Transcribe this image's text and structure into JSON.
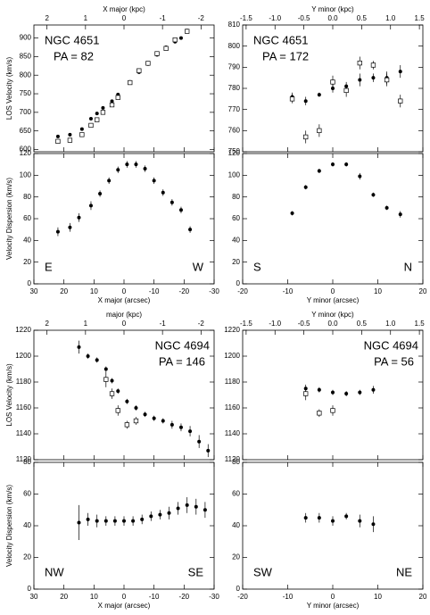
{
  "chart_data": [
    {
      "type": "scatter",
      "ylabel": "LOS Velocity (km/s)",
      "top_xlabel": "X major (kpc)",
      "annotations": [
        "NGC 4651",
        "PA = 82"
      ],
      "label_corner": "upper left",
      "xlim": [
        30,
        -30
      ],
      "xticks": [
        30,
        20,
        10,
        0,
        -10,
        -20,
        -30
      ],
      "ylim": [
        594,
        935
      ],
      "yticks": [
        600,
        650,
        700,
        750,
        800,
        850,
        900
      ],
      "top_xlim": [
        2.34,
        -2.34
      ],
      "top_xticks": [
        2,
        1,
        0,
        -1,
        -2
      ],
      "color": "#000000",
      "series": [
        {
          "marker": "filled",
          "x": [
            22,
            18,
            14,
            11,
            9,
            7,
            4,
            2,
            -2,
            -5,
            -8,
            -11,
            -14,
            -17,
            -19,
            -21
          ],
          "values": [
            635,
            640,
            655,
            683,
            697,
            712,
            730,
            748,
            782,
            808,
            830,
            855,
            875,
            890,
            900,
            920
          ],
          "errors": [
            4,
            4,
            4,
            4,
            4,
            4,
            4,
            4,
            4,
            4,
            4,
            4,
            4,
            4,
            4,
            4
          ]
        },
        {
          "marker": "open",
          "x": [
            22,
            18,
            14,
            11,
            9,
            7,
            4,
            2,
            -2,
            -5,
            -8,
            -11,
            -14,
            -17,
            -21
          ],
          "values": [
            622,
            625,
            640,
            665,
            680,
            700,
            720,
            740,
            780,
            812,
            832,
            858,
            872,
            895,
            918
          ],
          "errors": [
            4,
            4,
            4,
            4,
            4,
            4,
            4,
            4,
            4,
            4,
            4,
            4,
            4,
            4,
            4
          ]
        }
      ]
    },
    {
      "type": "scatter",
      "ylabel": "Velocity Dispersion (km/s)",
      "xlabel": "X major (arcsec)",
      "annotations": [
        "E",
        "W"
      ],
      "xlim": [
        30,
        -30
      ],
      "xticks": [
        30,
        20,
        10,
        0,
        -10,
        -20,
        -30
      ],
      "ylim": [
        0,
        120
      ],
      "yticks": [
        0,
        20,
        40,
        60,
        80,
        100,
        120
      ],
      "color": "#000000",
      "series": [
        {
          "marker": "filled",
          "x": [
            22,
            18,
            15,
            11,
            8,
            5,
            2,
            -1,
            -4,
            -7,
            -10,
            -13,
            -16,
            -19,
            -22
          ],
          "values": [
            48,
            52,
            61,
            72,
            83,
            95,
            105,
            110,
            110,
            106,
            95,
            84,
            75,
            68,
            50
          ],
          "errors": [
            4,
            4,
            4,
            4,
            3,
            3,
            3,
            3,
            3,
            3,
            3,
            3,
            3,
            3,
            3
          ]
        }
      ]
    },
    {
      "type": "scatter",
      "top_xlabel": "Y minor (kpc)",
      "annotations": [
        "NGC 4651",
        "PA = 172"
      ],
      "label_corner": "upper left",
      "xlim": [
        -20,
        20
      ],
      "xticks": [
        -20,
        -10,
        0,
        10,
        20
      ],
      "ylim": [
        750,
        810
      ],
      "yticks": [
        750,
        760,
        770,
        780,
        790,
        800,
        810
      ],
      "top_xlim": [
        -1.56,
        1.56
      ],
      "top_xticks": [
        -1.5,
        {
          "value": -1,
          "label": "-1.0"
        },
        -0.5,
        {
          "value": 0,
          "label": "0.0"
        },
        0.5,
        {
          "value": 1,
          "label": "1.0"
        },
        1.5
      ],
      "color": "#000000",
      "series": [
        {
          "marker": "filled",
          "x": [
            -9,
            -6,
            -3,
            0,
            3,
            6,
            9,
            12,
            15
          ],
          "values": [
            776,
            774,
            777,
            780,
            781,
            784,
            785,
            785,
            788
          ],
          "errors": [
            2,
            2,
            1,
            2,
            2,
            3,
            2,
            3,
            3
          ]
        },
        {
          "marker": "open",
          "x": [
            -9,
            -6,
            -3,
            0,
            3,
            6,
            9,
            12,
            15
          ],
          "values": [
            775,
            757,
            760,
            783,
            779,
            792,
            791,
            784,
            774
          ],
          "errors": [
            2,
            3,
            3,
            3,
            3,
            3,
            2,
            3,
            3
          ]
        }
      ]
    },
    {
      "type": "scatter",
      "xlabel": "Y minor (arcsec)",
      "annotations": [
        "S",
        "N"
      ],
      "xlim": [
        -20,
        20
      ],
      "xticks": [
        -20,
        -10,
        0,
        10,
        20
      ],
      "ylim": [
        0,
        120
      ],
      "yticks": [
        0,
        20,
        40,
        60,
        80,
        100,
        120
      ],
      "color": "#000000",
      "series": [
        {
          "marker": "filled",
          "x": [
            -9,
            -6,
            -3,
            0,
            3,
            6,
            9,
            12,
            15
          ],
          "values": [
            65,
            89,
            104,
            110,
            110,
            99,
            82,
            70,
            64
          ],
          "errors": [
            2,
            2,
            2,
            2,
            2,
            3,
            2,
            2,
            3
          ]
        }
      ]
    },
    {
      "type": "scatter",
      "ylabel": "LOS Velocity (km/s)",
      "top_xlabel": "major (kpc)",
      "annotations": [
        "NGC 4694",
        "PA = 146"
      ],
      "label_corner": "upper right",
      "xlim": [
        30,
        -30
      ],
      "xticks": [
        30,
        20,
        10,
        0,
        -10,
        -20,
        -30
      ],
      "ylim": [
        1120,
        1220
      ],
      "yticks": [
        1120,
        1140,
        1160,
        1180,
        1200,
        1220
      ],
      "top_xlim": [
        2.34,
        -2.34
      ],
      "top_xticks": [
        2,
        1,
        0,
        -1,
        -2
      ],
      "color": "#000000",
      "series": [
        {
          "marker": "filled",
          "x": [
            15,
            12,
            9,
            6,
            4,
            2,
            -1,
            -4,
            -7,
            -10,
            -13,
            -16,
            -19,
            -22,
            -25,
            -28
          ],
          "values": [
            1207,
            1200,
            1197,
            1190,
            1181,
            1173,
            1165,
            1160,
            1155,
            1152,
            1150,
            1147,
            1145,
            1142,
            1134,
            1127
          ],
          "errors": [
            5,
            2,
            2,
            2,
            2,
            2,
            2,
            2,
            2,
            2,
            2,
            3,
            3,
            4,
            5,
            5
          ]
        },
        {
          "marker": "open",
          "x": [
            6,
            4,
            2,
            -1,
            -4
          ],
          "values": [
            1182,
            1171,
            1158,
            1147,
            1150
          ],
          "errors": [
            6,
            4,
            4,
            3,
            3
          ]
        }
      ]
    },
    {
      "type": "scatter",
      "ylabel": "Velocity Dispersion (km/s)",
      "xlabel": "X major (arcsec)",
      "annotations": [
        "NW",
        "SE"
      ],
      "xlim": [
        30,
        -30
      ],
      "xticks": [
        30,
        20,
        10,
        0,
        -10,
        -20,
        -30
      ],
      "ylim": [
        0,
        80
      ],
      "yticks": [
        0,
        20,
        40,
        60,
        80
      ],
      "color": "#000000",
      "series": [
        {
          "marker": "filled",
          "x": [
            15,
            12,
            9,
            6,
            3,
            0,
            -3,
            -6,
            -9,
            -12,
            -15,
            -18,
            -21,
            -24,
            -27
          ],
          "values": [
            42,
            44,
            43,
            43,
            43,
            43,
            43,
            44,
            46,
            47,
            48,
            51,
            53,
            52,
            50
          ],
          "errors": [
            11,
            4,
            4,
            3,
            3,
            3,
            3,
            3,
            3,
            3,
            4,
            4,
            5,
            5,
            5
          ]
        }
      ]
    },
    {
      "type": "scatter",
      "top_xlabel": "Y minor (kpc)",
      "annotations": [
        "NGC 4694",
        "PA = 56"
      ],
      "label_corner": "upper right",
      "xlim": [
        -20,
        20
      ],
      "xticks": [
        -20,
        -10,
        0,
        10,
        20
      ],
      "ylim": [
        1120,
        1220
      ],
      "yticks": [
        1120,
        1140,
        1160,
        1180,
        1200,
        1220
      ],
      "top_xlim": [
        -1.56,
        1.56
      ],
      "top_xticks": [
        -1.5,
        {
          "value": -1,
          "label": "-1.0"
        },
        -0.5,
        {
          "value": 0,
          "label": "0.0"
        },
        0.5,
        {
          "value": 1,
          "label": "1.0"
        },
        1.5
      ],
      "color": "#000000",
      "series": [
        {
          "marker": "filled",
          "x": [
            -6,
            -3,
            0,
            3,
            6,
            9
          ],
          "values": [
            1175,
            1174,
            1172,
            1171,
            1172,
            1174
          ],
          "errors": [
            3,
            2,
            2,
            2,
            2,
            3
          ]
        },
        {
          "marker": "open",
          "x": [
            -6,
            -3,
            0
          ],
          "values": [
            1171,
            1156,
            1158
          ],
          "errors": [
            5,
            3,
            4
          ]
        }
      ]
    },
    {
      "type": "scatter",
      "xlabel": "Y minor (arcsec)",
      "annotations": [
        "SW",
        "NE"
      ],
      "xlim": [
        -20,
        20
      ],
      "xticks": [
        -20,
        -10,
        0,
        10,
        20
      ],
      "ylim": [
        0,
        80
      ],
      "yticks": [
        0,
        20,
        40,
        60,
        80
      ],
      "color": "#000000",
      "series": [
        {
          "marker": "filled",
          "x": [
            -6,
            -3,
            0,
            3,
            6,
            9
          ],
          "values": [
            45,
            45,
            43,
            46,
            43,
            41
          ],
          "errors": [
            3,
            3,
            3,
            2,
            4,
            5
          ]
        }
      ]
    }
  ]
}
